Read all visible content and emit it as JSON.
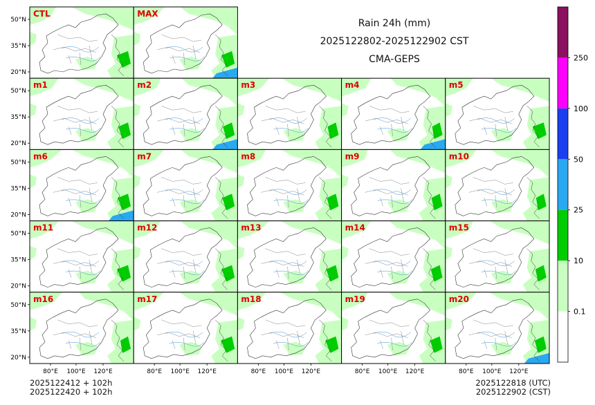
{
  "chart_data": {
    "type": "heatmap",
    "variable": "Rain 24h (mm)",
    "title": "Rain 24h (mm)",
    "period": "2025122802-2025122902 CST",
    "model": "CMA-GEPS",
    "panels": [
      "CTL",
      "MAX",
      "m1",
      "m2",
      "m3",
      "m4",
      "m5",
      "m6",
      "m7",
      "m8",
      "m9",
      "m10",
      "m11",
      "m12",
      "m13",
      "m14",
      "m15",
      "m16",
      "m17",
      "m18",
      "m19",
      "m20"
    ],
    "lat_ticks": [
      "50°N",
      "35°N",
      "20°N"
    ],
    "lon_ticks": [
      "80°E",
      "100°E",
      "120°E"
    ],
    "colorbar": {
      "levels": [
        "0.1",
        "10",
        "25",
        "50",
        "100",
        "250"
      ],
      "colors": [
        "#ffffff",
        "#c8ffc0",
        "#00cc00",
        "#2aa8f0",
        "#1a3ff0",
        "#ff00ff",
        "#8b1060"
      ]
    }
  },
  "footer": {
    "left_line1": "2025122412 + 102h",
    "left_line2": "2025122420 + 102h",
    "right_line1": "2025122818 (UTC)",
    "right_line2": "2025122902 (CST)"
  }
}
